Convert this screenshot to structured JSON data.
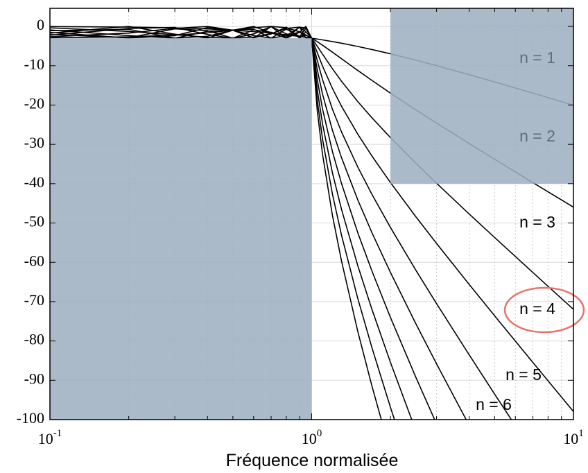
{
  "chart_data": {
    "type": "line",
    "xlabel": "Fréquence normalisée",
    "log_x": true,
    "grid": true,
    "xlim": [
      0.1,
      10
    ],
    "ylim": [
      -100,
      4.6
    ],
    "xticks": [
      {
        "value": 0.1,
        "label": "10",
        "exponent": "-1"
      },
      {
        "value": 1,
        "label": "10",
        "exponent": "0"
      },
      {
        "value": 10,
        "label": "10",
        "exponent": "1"
      }
    ],
    "xminorticks": [
      0.2,
      0.3,
      0.4,
      0.5,
      0.6,
      0.7,
      0.8,
      0.9,
      2,
      3,
      4,
      5,
      6,
      7,
      8,
      9
    ],
    "yticks": [
      0,
      -10,
      -20,
      -30,
      -40,
      -50,
      -60,
      -70,
      -80,
      -90,
      -100
    ],
    "regions": [
      {
        "xlim": [
          0.1,
          1
        ],
        "ylim": [
          -100,
          -3
        ],
        "color": "#9fb1c0"
      },
      {
        "xlim": [
          2,
          10
        ],
        "ylim": [
          -40,
          4.6
        ],
        "color": "#9fb1c0"
      }
    ],
    "x": [
      0.1,
      0.2,
      0.3,
      0.4,
      0.5,
      0.6,
      0.7,
      0.8,
      0.9,
      0.95,
      1,
      1.05,
      1.1,
      1.2,
      1.3,
      1.5,
      1.7,
      2,
      2.5,
      3,
      4,
      5,
      7,
      10
    ],
    "series": [
      {
        "name": "n = 1",
        "color": "#000000",
        "values": [
          -0.04,
          -0.17,
          -0.37,
          -0.64,
          -0.97,
          -1.33,
          -1.72,
          -2.14,
          -2.57,
          -2.78,
          -3.01,
          -3.22,
          -3.43,
          -3.86,
          -4.28,
          -5.1,
          -5.88,
          -6.97,
          -8.59,
          -9.98,
          -12.28,
          -14.13,
          -16.97,
          -20.02
        ]
      },
      {
        "name": "n = 2",
        "color": "#000000",
        "values": [
          -2.91,
          -2.65,
          -2.22,
          -1.64,
          -0.97,
          -0.33,
          0,
          -0.33,
          -1.39,
          -2.16,
          -3.01,
          -3.88,
          -4.78,
          -6.55,
          -8.22,
          -11.2,
          -13.75,
          -16.97,
          -21.23,
          -24.59,
          -29.81,
          -33.78,
          -39.72,
          -45.96
        ]
      },
      {
        "name": "n = 3",
        "color": "#000000",
        "values": [
          -0.36,
          -1.27,
          -2.11,
          -2.75,
          -3.01,
          -2.72,
          -1.83,
          -0.51,
          -0.2,
          -1.31,
          -3.01,
          -5.03,
          -7.06,
          -10.76,
          -13.94,
          -19.12,
          -23.26,
          -28.28,
          -34.79,
          -39.89,
          -47.73,
          -53.69,
          -62.59,
          -71.96
        ]
      },
      {
        "name": "n = 4",
        "color": "#000000",
        "values": [
          -2.65,
          -1.69,
          -0.49,
          -0.02,
          -0.97,
          -2.33,
          -3.0,
          -2.33,
          -0.23,
          -0.36,
          -3.01,
          -6.64,
          -10.07,
          -15.76,
          -20.3,
          -27.4,
          -32.99,
          -39.72,
          -48.4,
          -55.2,
          -65.65,
          -73.61,
          -85.47,
          -97.95
        ]
      },
      {
        "name": "n = 5",
        "color": "#000000",
        "values": [
          -0.9,
          -2.34,
          -3.0,
          -2.5,
          -0.97,
          -0.02,
          -1.62,
          -3.0,
          -1.46,
          0,
          -3.01,
          -8.64,
          -13.52,
          -21.04,
          -26.82,
          -35.76,
          -42.74,
          -51.15,
          -62.0,
          -70.51,
          -83.57,
          -93.52,
          -108.35,
          null
        ]
      },
      {
        "name": "n = 6",
        "color": "#000000",
        "values": [
          -2.24,
          -0.52,
          -0.27,
          -2.04,
          -3.01,
          -1.92,
          -0.02,
          -1.92,
          -2.59,
          -0.45,
          -3.01,
          -10.93,
          -17.2,
          -26.4,
          -33.38,
          -44.12,
          -52.5,
          -62.59,
          -75.61,
          -85.83,
          -101.5,
          null,
          null,
          null
        ]
      },
      {
        "color": "#000000",
        "values": [
          -1.51,
          -2.95,
          -2.35,
          -0.28,
          -0.97,
          -2.9,
          -1.93,
          -0.18,
          -3.01,
          -1.36,
          -3.01,
          -13.41,
          -20.98,
          -31.8,
          -39.95,
          -52.47,
          -62.25,
          -74.03,
          -89.22,
          -101.13,
          null,
          null,
          null,
          null
        ]
      },
      {
        "color": "#000000",
        "values": [
          -1.71,
          -0.01,
          -1.97,
          -2.96,
          -0.97,
          -0.71,
          -3.0,
          -0.71,
          -2.54,
          -2.25,
          -3.01,
          -16.01,
          -24.8,
          -37.21,
          -46.52,
          -60.84,
          -72.01,
          -85.47,
          -102.83,
          null,
          null,
          null,
          null,
          null
        ]
      },
      {
        "color": "#000000",
        "values": [
          -2.06,
          -2.89,
          -0.61,
          -1.08,
          -3.01,
          -0.87,
          -1.49,
          -2.49,
          -1.37,
          -2.84,
          -3.01,
          -18.67,
          -28.64,
          -42.62,
          -53.09,
          -69.19,
          -81.76,
          -96.91,
          -116.44,
          null,
          null,
          null,
          null,
          null
        ]
      },
      {
        "color": "#000000",
        "values": [
          -1.1,
          -0.74,
          -3.0,
          -1.24,
          -0.97,
          -2.96,
          -0.04,
          -2.96,
          -0.17,
          -3.01,
          -3.01,
          -21.36,
          -32.49,
          -48.02,
          -59.66,
          -77.56,
          -91.52,
          -108.35,
          null,
          null,
          null,
          null,
          null,
          null
        ]
      }
    ]
  }
}
